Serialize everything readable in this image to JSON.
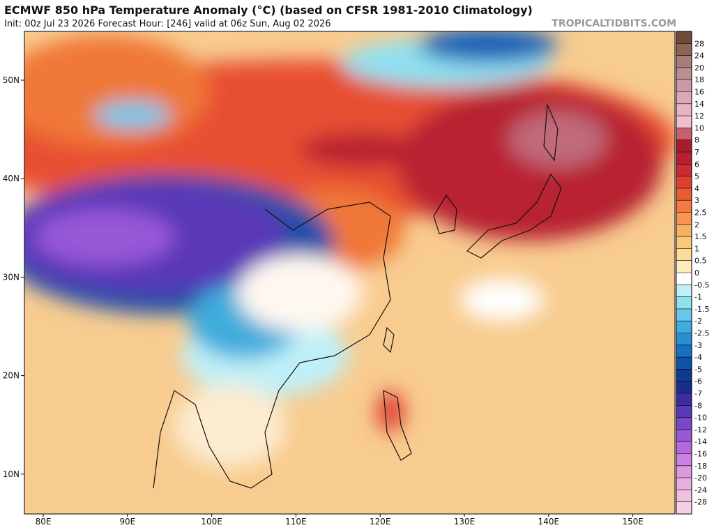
{
  "header": {
    "title": "ECMWF 850 hPa Temperature Anomaly (°C) (based on CFSR 1981-2010 Climatology)",
    "subtitle": "Init: 00z Jul 23 2026   Forecast Hour: [246]   valid at 06z Sun, Aug 02 2026",
    "watermark": "TROPICALTIDBITS.COM"
  },
  "map": {
    "lat_labels": [
      "50N",
      "40N",
      "30N",
      "20N",
      "10N"
    ],
    "lon_labels": [
      "80E",
      "90E",
      "100E",
      "110E",
      "120E",
      "130E",
      "140E",
      "150E"
    ]
  },
  "colorbar": {
    "labels": [
      "28",
      "24",
      "20",
      "18",
      "16",
      "14",
      "12",
      "10",
      "8",
      "7",
      "6",
      "5",
      "4",
      "3",
      "2.5",
      "2",
      "1.5",
      "1",
      "0.5",
      "0",
      "-0.5",
      "-1",
      "-1.5",
      "-2",
      "-2.5",
      "-3",
      "-4",
      "-5",
      "-6",
      "-7",
      "-8",
      "-10",
      "-12",
      "-14",
      "-16",
      "-18",
      "-20",
      "-24",
      "-28"
    ],
    "colors": [
      "#6e4a3a",
      "#8c6456",
      "#a87c78",
      "#bc8e92",
      "#cc9aa6",
      "#dca8b6",
      "#e8b4c4",
      "#f0bece",
      "#c86070",
      "#a81c2c",
      "#b82030",
      "#cc2c30",
      "#e04030",
      "#ec5c30",
      "#f47a40",
      "#f89650",
      "#f9b060",
      "#fac878",
      "#fbdc98",
      "#fcecc0",
      "#ffffff",
      "#bff0f8",
      "#90e0f0",
      "#68c8ec",
      "#40acdc",
      "#2890d0",
      "#1870c0",
      "#1050a8",
      "#0c3c90",
      "#1c2c88",
      "#3c2ca0",
      "#5a38b8",
      "#7848c8",
      "#9858d8",
      "#b468e0",
      "#cc80e0",
      "#dc98e0",
      "#e8b0e0",
      "#f0c0e0",
      "#f4d0e4"
    ]
  }
}
